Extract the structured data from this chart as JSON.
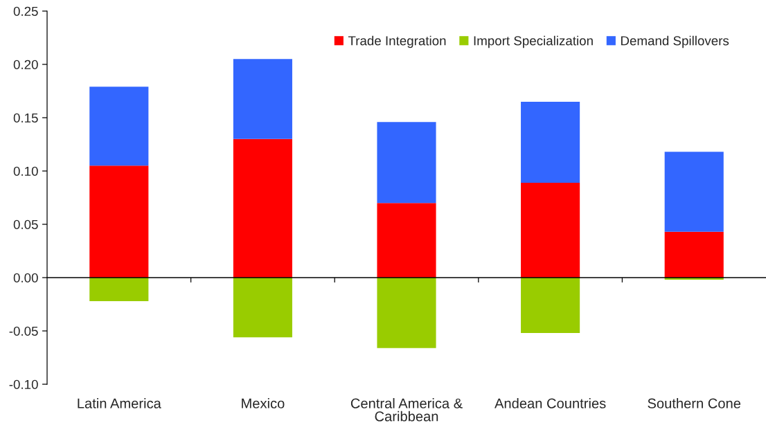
{
  "chart_data": {
    "type": "bar",
    "stacked": true,
    "categories": [
      "Latin America",
      "Mexico",
      "Central America &\nCaribbean",
      "Andean Countries",
      "Southern Cone"
    ],
    "series": [
      {
        "name": "Trade Integration",
        "color": "#ff0000",
        "values": [
          0.105,
          0.13,
          0.07,
          0.089,
          0.043
        ]
      },
      {
        "name": "Import Specialization",
        "color": "#99cc00",
        "values": [
          -0.022,
          -0.056,
          -0.066,
          -0.052,
          -0.002
        ]
      },
      {
        "name": "Demand Spillovers",
        "color": "#3366ff",
        "values": [
          0.074,
          0.075,
          0.076,
          0.076,
          0.075
        ]
      }
    ],
    "ylim": [
      -0.1,
      0.25
    ],
    "yticks": [
      {
        "value": -0.1,
        "label": "-0.10"
      },
      {
        "value": -0.05,
        "label": "-0.05"
      },
      {
        "value": 0,
        "label": "0.00"
      },
      {
        "value": 0.05,
        "label": "0.05"
      },
      {
        "value": 0.1,
        "label": "0.10"
      },
      {
        "value": 0.15,
        "label": "0.15"
      },
      {
        "value": 0.2,
        "label": "0.20"
      },
      {
        "value": 0.25,
        "label": "0.25"
      }
    ],
    "legend": "top right"
  }
}
